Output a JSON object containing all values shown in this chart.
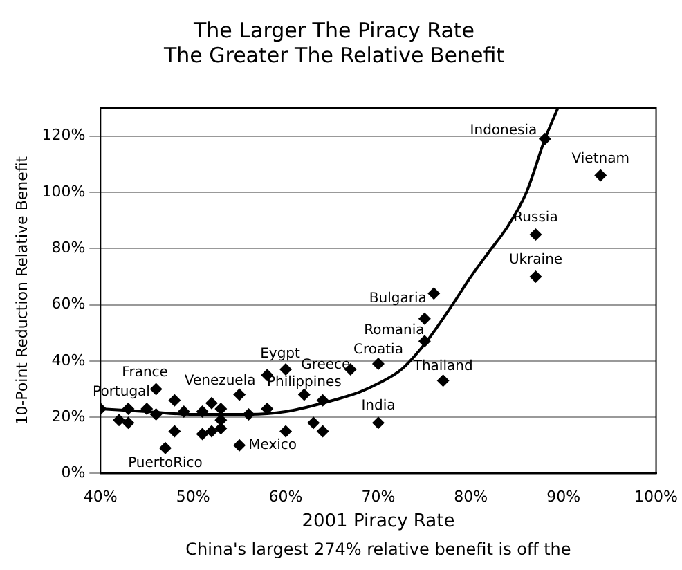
{
  "chart_data": {
    "type": "scatter",
    "title": "The Larger The Piracy Rate\nThe Greater The Relative Benefit",
    "xlabel": "2001 Piracy Rate",
    "ylabel": "10-Point Reduction Relative Benefit",
    "xlim": [
      40,
      100
    ],
    "ylim": [
      0,
      130
    ],
    "xticks": [
      {
        "value": 40,
        "label": "40%"
      },
      {
        "value": 50,
        "label": "50%"
      },
      {
        "value": 60,
        "label": "60%"
      },
      {
        "value": 70,
        "label": "70%"
      },
      {
        "value": 80,
        "label": "80%"
      },
      {
        "value": 90,
        "label": "90%"
      },
      {
        "value": 100,
        "label": "100%"
      }
    ],
    "yticks": [
      {
        "value": 0,
        "label": "0%"
      },
      {
        "value": 20,
        "label": "20%"
      },
      {
        "value": 40,
        "label": "40%"
      },
      {
        "value": 60,
        "label": "60%"
      },
      {
        "value": 80,
        "label": "80%"
      },
      {
        "value": 100,
        "label": "100%"
      },
      {
        "value": 120,
        "label": "120%"
      }
    ],
    "grid": "y",
    "legend": false,
    "marker": "diamond",
    "series": [
      {
        "color": "#000000",
        "x": [
          40,
          42,
          43,
          43,
          45,
          46,
          46,
          47,
          48,
          48,
          49,
          51,
          51,
          52,
          52,
          53,
          53,
          53,
          55,
          55,
          56,
          58,
          58,
          60,
          60,
          62,
          63,
          64,
          64,
          67,
          70,
          70,
          75,
          76,
          75,
          77,
          87,
          87,
          88,
          94
        ],
        "values": [
          23,
          19,
          18,
          23,
          23,
          30,
          21,
          9,
          26,
          15,
          22,
          22,
          14,
          25,
          15,
          23,
          19,
          16,
          28,
          10,
          21,
          35,
          23,
          37,
          15,
          28,
          18,
          15,
          26,
          37,
          39,
          18,
          47,
          64,
          55,
          33,
          70,
          85,
          119,
          106
        ]
      },
      {
        "type": "line",
        "color": "#000000",
        "marker": "none",
        "x": [
          40,
          45,
          50,
          56,
          60,
          64,
          68,
          70,
          72.5,
          75,
          78,
          80,
          82,
          84,
          86,
          88,
          89.4
        ],
        "values": [
          23,
          22,
          21,
          21,
          22,
          25,
          29,
          32,
          37,
          46,
          60,
          70,
          79,
          88,
          100,
          119,
          130
        ]
      }
    ],
    "annotations": [
      "China's largest 274% relative benefit is off the",
      {
        "text": "France",
        "x": 46,
        "y": 30
      },
      {
        "text": "Portugal",
        "x": 43,
        "y": 23
      },
      {
        "text": "Venezuela",
        "x": 55,
        "y": 28
      },
      {
        "text": "PuertoRico",
        "x": 47,
        "y": 9
      },
      {
        "text": "Mexico",
        "x": 55,
        "y": 10
      },
      {
        "text": "Eygpt",
        "x": 60,
        "y": 37
      },
      {
        "text": "Philippines",
        "x": 62,
        "y": 28
      },
      {
        "text": "Greece",
        "x": 67,
        "y": 37
      },
      {
        "text": "Croatia",
        "x": 70,
        "y": 39
      },
      {
        "text": "Bulgaria",
        "x": 76,
        "y": 64
      },
      {
        "text": "Romania",
        "x": 75,
        "y": 47
      },
      {
        "text": "Thailand",
        "x": 77,
        "y": 33
      },
      {
        "text": "India",
        "x": 70,
        "y": 18
      },
      {
        "text": "Ukraine",
        "x": 87,
        "y": 70
      },
      {
        "text": "Russia",
        "x": 87,
        "y": 85
      },
      {
        "text": "Vietnam",
        "x": 94,
        "y": 106
      },
      {
        "text": "Indonesia",
        "x": 88,
        "y": 119
      }
    ]
  }
}
